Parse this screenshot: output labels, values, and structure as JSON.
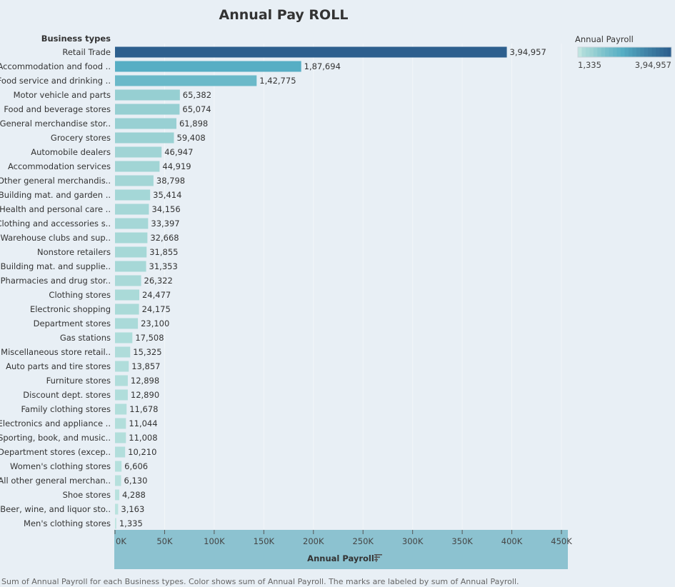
{
  "chart_data": {
    "type": "bar",
    "orientation": "horizontal",
    "title": "Annual Pay ROLL",
    "category_header": "Business types",
    "xlabel": "Annual Payroll",
    "xlim": [
      0,
      450000
    ],
    "x_ticks": [
      "0K",
      "50K",
      "100K",
      "150K",
      "200K",
      "250K",
      "300K",
      "350K",
      "400K",
      "450K"
    ],
    "x_tick_values": [
      0,
      50000,
      100000,
      150000,
      200000,
      250000,
      300000,
      350000,
      400000,
      450000
    ],
    "grid": true,
    "categories": [
      "Retail Trade",
      "Accommodation and food ..",
      "Food service and drinking ..",
      "Motor vehicle and parts",
      "Food and beverage stores",
      "General merchandise stor..",
      "Grocery stores",
      "Automobile dealers",
      "Accommodation services",
      "Other general merchandis..",
      "Building mat. and garden ..",
      "Health and personal care ..",
      "Clothing and accessories s..",
      "Warehouse clubs and sup..",
      "Nonstore retailers",
      "Building mat. and supplie..",
      "Pharmacies and drug stor..",
      "Clothing stores",
      "Electronic shopping",
      "Department stores",
      "Gas stations",
      "Miscellaneous store retail..",
      "Auto parts and tire stores",
      "Furniture stores",
      "Discount dept. stores",
      "Family clothing stores",
      "Electronics and appliance ..",
      "Sporting, book, and music..",
      "Department stores (excep..",
      "Women's clothing stores",
      "All other general merchan..",
      "Shoe stores",
      "Beer, wine, and liquor sto..",
      "Men's clothing stores"
    ],
    "values": [
      394957,
      187694,
      142775,
      65382,
      65074,
      61898,
      59408,
      46947,
      44919,
      38798,
      35414,
      34156,
      33397,
      32668,
      31855,
      31353,
      26322,
      24477,
      24175,
      23100,
      17508,
      15325,
      13857,
      12898,
      12890,
      11678,
      11044,
      11008,
      10210,
      6606,
      6130,
      4288,
      3163,
      1335
    ],
    "value_labels": [
      "3,94,957",
      "1,87,694",
      "1,42,775",
      "65,382",
      "65,074",
      "61,898",
      "59,408",
      "46,947",
      "44,919",
      "38,798",
      "35,414",
      "34,156",
      "33,397",
      "32,668",
      "31,855",
      "31,353",
      "26,322",
      "24,477",
      "24,175",
      "23,100",
      "17,508",
      "15,325",
      "13,857",
      "12,898",
      "12,890",
      "11,678",
      "11,044",
      "11,008",
      "10,210",
      "6,606",
      "6,130",
      "4,288",
      "3,163",
      "1,335"
    ],
    "legend": {
      "title": "Annual Payroll",
      "min_label": "1,335",
      "max_label": "3,94,957",
      "min": 1335,
      "max": 394957,
      "placement": "top-right",
      "colors": [
        "#bfe5e0",
        "#9dd3d4",
        "#56aec4",
        "#2d5f8e"
      ]
    },
    "caption": "Sum of Annual Payroll for each Business types.  Color shows sum of Annual Payroll.  The marks are labeled by sum of Annual Payroll.",
    "sort_icon": "sort-descending-icon"
  }
}
